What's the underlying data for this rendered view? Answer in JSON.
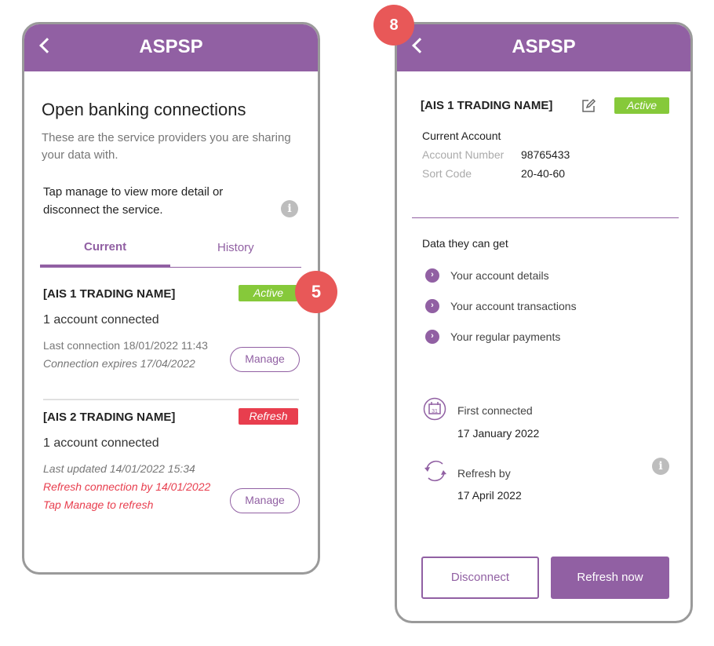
{
  "left": {
    "header": {
      "title": "ASPSP",
      "back_icon": "chevron-left-icon"
    },
    "title": "Open banking connections",
    "subtitle_line1": "These are the service providers you are sharing",
    "subtitle_line2": "your data with.",
    "hint_line1": "Tap manage to view more detail or",
    "hint_line2": "disconnect the service.",
    "tabs": [
      {
        "label": "Current",
        "active": true
      },
      {
        "label": "History",
        "active": false
      }
    ],
    "connections": [
      {
        "name": "[AIS 1 TRADING NAME]",
        "status": "Active",
        "status_color": "#86c93a",
        "accounts": "1 account connected",
        "line1": "Last connection 18/01/2022 11:43",
        "line2": "Connection expires 17/04/2022",
        "manage": "Manage"
      },
      {
        "name": "[AIS 2 TRADING NAME]",
        "status": "Refresh",
        "status_color": "#e83e4e",
        "accounts": "1 account connected",
        "line1": "Last updated 14/01/2022 15:34",
        "line2": "Refresh connection by 14/01/2022",
        "line3": "Tap Manage to refresh",
        "manage": "Manage"
      }
    ]
  },
  "right": {
    "header": {
      "title": "ASPSP"
    },
    "name": "[AIS 1 TRADING NAME]",
    "status": "Active",
    "account_type": "Current Account",
    "account_number_label": "Account Number",
    "account_number": "98765433",
    "sort_code_label": "Sort Code",
    "sort_code": "20-40-60",
    "data_heading": "Data they can get",
    "data_items": [
      "Your account details",
      "Your account transactions",
      "Your regular payments"
    ],
    "first_connected_label": "First connected",
    "first_connected": "17 January 2022",
    "refresh_by_label": "Refresh by",
    "refresh_by": "17 April 2022",
    "disconnect": "Disconnect",
    "refresh_now": "Refresh now"
  },
  "steps": {
    "left": "5",
    "right": "8"
  },
  "colors": {
    "brand": "#9160a3",
    "active": "#86c93a",
    "refresh": "#e83e4e",
    "step": "#e85858"
  }
}
